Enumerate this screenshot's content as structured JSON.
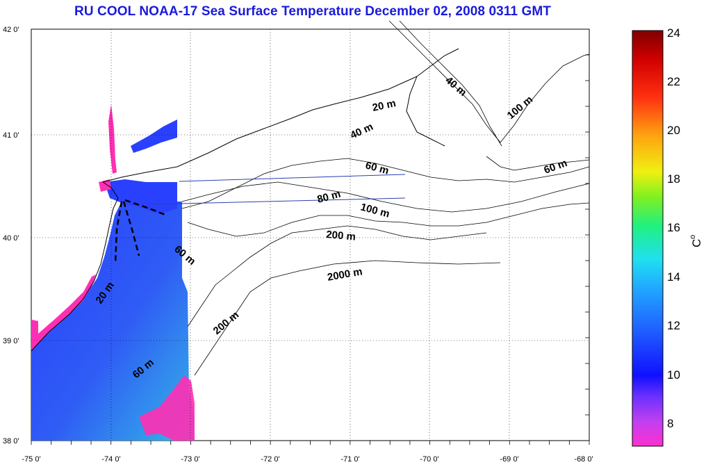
{
  "title": "RU COOL  NOAA-17 Sea Surface Temperature December 02, 2008 0311 GMT",
  "x_ticks": [
    "-75 0'",
    "-74 0'",
    "-73 0'",
    "-72 0'",
    "-71 0'",
    "-70 0'",
    "-69 0'",
    "-68 0'"
  ],
  "y_ticks": [
    "42 0'",
    "41 0'",
    "40 0'",
    "39 0'",
    "38 0'"
  ],
  "colorbar": {
    "unit": "C",
    "unit_superscript": "o",
    "ticks": [
      "24",
      "22",
      "20",
      "18",
      "16",
      "14",
      "12",
      "10",
      "8"
    ],
    "range": [
      7,
      24
    ]
  },
  "contour_labels": [
    {
      "text": "20 m"
    },
    {
      "text": "40 m"
    },
    {
      "text": "40 m"
    },
    {
      "text": "100 m"
    },
    {
      "text": "60 m"
    },
    {
      "text": "60 m"
    },
    {
      "text": "80 m"
    },
    {
      "text": "100 m"
    },
    {
      "text": "200 m"
    },
    {
      "text": "60 m"
    },
    {
      "text": "2000 m"
    },
    {
      "text": "20 m"
    },
    {
      "text": "200 m"
    },
    {
      "text": "60 m"
    }
  ],
  "colors": {
    "title": "#1a1adc",
    "land_border": "#000000",
    "sst_cold": "#1e3cff",
    "sst_warm": "#28c8e6",
    "cloud_flag": "#ff2fb4"
  }
}
